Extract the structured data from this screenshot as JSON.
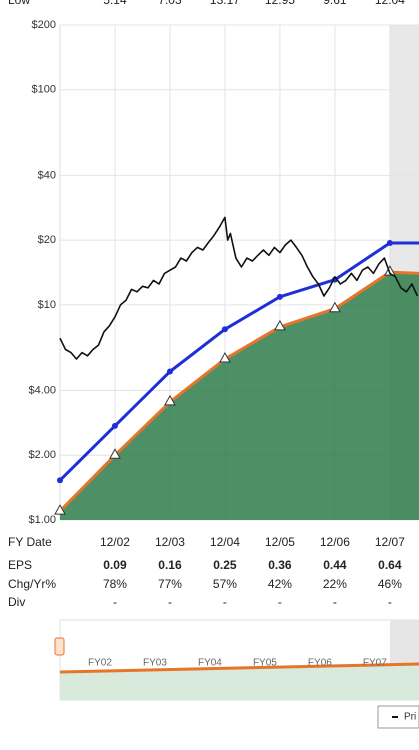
{
  "top_row": {
    "label": "Low",
    "cells": [
      "5.14",
      "7.03",
      "13.17",
      "12.95",
      "9.61",
      "12.04"
    ]
  },
  "chart_data": {
    "type": "line",
    "log_scale": true,
    "grid": true,
    "shade_from": 2007,
    "xlim": [
      2001,
      2007.53
    ],
    "ylim": [
      1,
      200
    ],
    "xticks": [
      {
        "value": 2002,
        "label": "12/02"
      },
      {
        "value": 2003,
        "label": "12/03"
      },
      {
        "value": 2004,
        "label": "12/04"
      },
      {
        "value": 2005,
        "label": "12/05"
      },
      {
        "value": 2006,
        "label": "12/06"
      },
      {
        "value": 2007,
        "label": "12/07"
      }
    ],
    "yticks": [
      {
        "value": 1,
        "label": "$1.00"
      },
      {
        "value": 2,
        "label": "$2.00"
      },
      {
        "value": 4,
        "label": "$4.00"
      },
      {
        "value": 10,
        "label": "$10"
      },
      {
        "value": 20,
        "label": "$20"
      },
      {
        "value": 40,
        "label": "$40"
      },
      {
        "value": 100,
        "label": "$100"
      },
      {
        "value": 200,
        "label": "$200"
      }
    ],
    "series": [
      {
        "color": "#2e7d4a",
        "line_color": "#e8742a",
        "fill": true,
        "markers": "triangle",
        "x": [
          2001,
          2002,
          2003,
          2004,
          2005,
          2006,
          2007,
          2007.53
        ],
        "values": [
          1.1,
          2.0,
          3.54,
          5.6,
          7.9,
          9.6,
          14.2,
          14
        ]
      },
      {
        "color": "#1f2fd6",
        "x": [
          2001,
          2002,
          2003,
          2004,
          2005,
          2006,
          2007,
          2007.53
        ],
        "values": [
          1.53,
          2.74,
          4.9,
          7.7,
          10.9,
          13.1,
          19.4,
          19.4
        ]
      },
      {
        "name": "Pri",
        "color": "#111111",
        "x": [
          2001.0,
          2001.1,
          2001.2,
          2001.3,
          2001.4,
          2001.5,
          2001.6,
          2001.7,
          2001.8,
          2001.9,
          2002.0,
          2002.1,
          2002.2,
          2002.3,
          2002.4,
          2002.5,
          2002.6,
          2002.7,
          2002.8,
          2002.9,
          2003.0,
          2003.1,
          2003.2,
          2003.3,
          2003.4,
          2003.5,
          2003.6,
          2003.7,
          2003.8,
          2003.9,
          2004.0,
          2004.05,
          2004.1,
          2004.2,
          2004.3,
          2004.4,
          2004.5,
          2004.6,
          2004.7,
          2004.8,
          2004.9,
          2005.0,
          2005.1,
          2005.2,
          2005.3,
          2005.4,
          2005.5,
          2005.6,
          2005.7,
          2005.8,
          2005.9,
          2006.0,
          2006.1,
          2006.2,
          2006.3,
          2006.4,
          2006.5,
          2006.6,
          2006.7,
          2006.8,
          2006.9,
          2007.0,
          2007.1,
          2007.2,
          2007.3,
          2007.4,
          2007.5
        ],
        "values": [
          7.0,
          6.2,
          6.0,
          5.6,
          6.0,
          5.8,
          6.2,
          6.5,
          7.5,
          8.0,
          8.8,
          10.0,
          10.5,
          11.8,
          11.5,
          12.2,
          12.0,
          13.0,
          12.5,
          14.0,
          14.5,
          15.0,
          16.5,
          16.0,
          17.5,
          18.5,
          18.0,
          19.5,
          21.0,
          23.0,
          25.5,
          20.0,
          21.5,
          16.5,
          15.0,
          16.5,
          16.0,
          17.0,
          18.0,
          17.0,
          18.5,
          17.5,
          19.0,
          20.0,
          18.5,
          17.0,
          15.0,
          13.5,
          12.5,
          11.0,
          12.0,
          13.5,
          12.5,
          13.0,
          14.0,
          13.0,
          14.5,
          15.0,
          14.0,
          15.5,
          16.5,
          14.0,
          13.5,
          12.0,
          11.5,
          12.5,
          11.0
        ]
      }
    ]
  },
  "table": {
    "date_label": "FY Date",
    "rows": [
      {
        "label": "EPS",
        "cells": [
          "0.09",
          "0.16",
          "0.25",
          "0.36",
          "0.44",
          "0.64"
        ]
      },
      {
        "label": "Chg/Yr%",
        "cells": [
          "78%",
          "77%",
          "57%",
          "42%",
          "22%",
          "46%"
        ]
      },
      {
        "label": "Div",
        "cells": [
          "-",
          "-",
          "-",
          "-",
          "-",
          "-"
        ]
      }
    ]
  },
  "navigator": {
    "labels": [
      "FY02",
      "FY03",
      "FY04",
      "FY05",
      "FY06",
      "FY07"
    ]
  }
}
